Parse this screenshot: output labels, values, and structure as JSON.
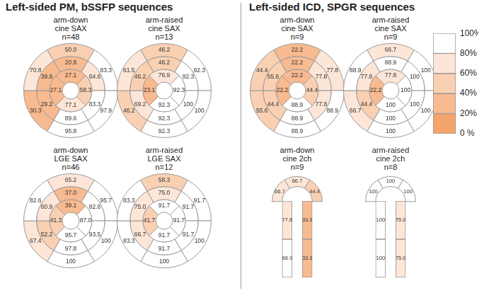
{
  "headings": [
    "Left-sided PM, bSSFP sequences",
    "Left-sided ICD, SPGR sequences"
  ],
  "colorbar": {
    "range": [
      0,
      100
    ],
    "ticks": [
      {
        "value": 0,
        "label": "0 %"
      },
      {
        "value": 20,
        "label": "20%"
      },
      {
        "value": 40,
        "label": "40%"
      },
      {
        "value": 60,
        "label": "60%"
      },
      {
        "value": 80,
        "label": "80%"
      },
      {
        "value": 100,
        "label": "100%"
      }
    ],
    "colors": [
      "#f5a46c",
      "#f8ba90",
      "#fad0b3",
      "#fde6d7",
      "#ffffff"
    ]
  },
  "chart_data": [
    {
      "type": "bullseye",
      "title": [
        "arm-down",
        "cine SAX",
        "n=48"
      ],
      "basal": {
        "values": [
          50.0,
          83.3,
          97.9,
          95.8,
          30.3,
          70.8
        ],
        "value_labels": [
          "50.0",
          "83.3",
          "97.9",
          "95.8",
          "30.3",
          "70.8"
        ]
      },
      "mid": {
        "values": [
          20.8,
          64.6,
          83.3,
          89.6,
          29.2,
          39.6
        ],
        "value_labels": [
          "20.8",
          "64.6",
          "83.3",
          "89.6",
          "29.2",
          "39.6"
        ]
      },
      "apical": {
        "values": [
          27.1,
          58.3,
          77.1,
          27.1
        ],
        "value_labels": [
          "27.1",
          "58.3",
          "77.1",
          "27.1"
        ]
      }
    },
    {
      "type": "bullseye",
      "title": [
        "arm-raised",
        "cine SAX",
        "n=13"
      ],
      "basal": {
        "values": [
          46.2,
          92.3,
          100,
          92.3,
          46.2,
          61.5
        ],
        "value_labels": [
          "46.2",
          "92.3",
          "100",
          "92.3",
          "46.2",
          "61.5"
        ]
      },
      "mid": {
        "values": [
          46.2,
          92.3,
          100,
          92.3,
          69.2,
          46.2
        ],
        "value_labels": [
          "46.2",
          "92.3",
          "100",
          "92.3",
          "69.2",
          "46.2"
        ]
      },
      "apical": {
        "values": [
          76.9,
          92.3,
          92.3,
          23.1
        ],
        "value_labels": [
          "76.9",
          "92.3",
          "92.3",
          "23.1"
        ]
      }
    },
    {
      "type": "bullseye",
      "title": [
        "arm-down",
        "LGE SAX",
        "n=46"
      ],
      "basal": {
        "values": [
          65.2,
          95.7,
          100,
          100,
          67.4,
          82.6
        ],
        "value_labels": [
          "65.2",
          "95.7",
          "100",
          "100",
          "67.4",
          "82.6"
        ]
      },
      "mid": {
        "values": [
          37.0,
          82.6,
          93.5,
          97.8,
          52.2,
          60.9
        ],
        "value_labels": [
          "37.0",
          "82.6",
          "93.5",
          "97.8",
          "52.2",
          "60.9"
        ]
      },
      "apical": {
        "values": [
          39.1,
          87.0,
          95.7,
          41.3
        ],
        "value_labels": [
          "39.1",
          "87.0",
          "95.7",
          "41.3"
        ]
      }
    },
    {
      "type": "bullseye",
      "title": [
        "arm-raised",
        "LGE SAX",
        "n=12"
      ],
      "basal": {
        "values": [
          58.3,
          91.7,
          100,
          100,
          83.3,
          83.3
        ],
        "value_labels": [
          "58.3",
          "91.7",
          "100",
          "100",
          "83.3",
          "83.3"
        ]
      },
      "mid": {
        "values": [
          75.0,
          91.7,
          91.7,
          91.7,
          66.7,
          75.0
        ],
        "value_labels": [
          "75.0",
          "91.7",
          "91.7",
          "91.7",
          "66.7",
          "75.0"
        ]
      },
      "apical": {
        "values": [
          91.7,
          91.7,
          91.7,
          41.7
        ],
        "value_labels": [
          "91.7",
          "91.7",
          "91.7",
          "41.7"
        ]
      }
    },
    {
      "type": "bullseye",
      "title": [
        "arm-down",
        "cine SAX",
        "n=9"
      ],
      "basal": {
        "values": [
          22.2,
          77.8,
          88.9,
          88.9,
          55.6,
          44.4
        ],
        "value_labels": [
          "22.2",
          "77.8",
          "88.9",
          "88.9",
          "55.6",
          "44.4"
        ]
      },
      "mid": {
        "values": [
          22.2,
          77.8,
          77.8,
          88.9,
          44.4,
          55.6
        ],
        "value_labels": [
          "22.2",
          "77.8",
          "77.8",
          "88.9",
          "44.4",
          "55.6"
        ]
      },
      "apical": {
        "values": [
          22.2,
          44.4,
          88.9,
          22.2
        ],
        "value_labels": [
          "22.2",
          "44.4",
          "88.9",
          "22.2"
        ]
      }
    },
    {
      "type": "bullseye",
      "title": [
        "arm-raised",
        "cine SAX",
        "n=9"
      ],
      "basal": {
        "values": [
          66.7,
          100,
          100,
          100,
          66.7,
          88.9
        ],
        "value_labels": [
          "66.7",
          "100",
          "100",
          "100",
          "66.7",
          "88.9"
        ]
      },
      "mid": {
        "values": [
          88.9,
          100,
          100,
          100,
          44.4,
          77.8
        ],
        "value_labels": [
          "88.9",
          "100",
          "100",
          "100",
          "44.4",
          "77.8"
        ]
      },
      "apical": {
        "values": [
          77.8,
          100,
          100,
          22.2
        ],
        "value_labels": [
          "77.8",
          "100",
          "100",
          "22.2"
        ]
      }
    },
    {
      "type": "longaxis",
      "title": [
        "arm-down",
        "cine 2ch",
        "n=9"
      ],
      "apex": {
        "values": [
          66.7
        ],
        "value_labels": [
          "66.7"
        ]
      },
      "apical": {
        "values": [
          66.7,
          44.4
        ],
        "value_labels": [
          "66.7",
          "44.4"
        ]
      },
      "mid": {
        "values": [
          77.8,
          33.3
        ],
        "value_labels": [
          "77.8",
          "33.3"
        ]
      },
      "basal": {
        "values": [
          88.9,
          33.3
        ],
        "value_labels": [
          "88.9",
          "33.3"
        ]
      }
    },
    {
      "type": "longaxis",
      "title": [
        "arm-raised",
        "cine 2ch",
        "n=8"
      ],
      "apex": {
        "values": [
          100
        ],
        "value_labels": [
          "100"
        ]
      },
      "apical": {
        "values": [
          100,
          100
        ],
        "value_labels": [
          "100",
          "100"
        ]
      },
      "mid": {
        "values": [
          100,
          75.0
        ],
        "value_labels": [
          "100",
          "75.0"
        ]
      },
      "basal": {
        "values": [
          100,
          75.0
        ],
        "value_labels": [
          "100",
          "75.0"
        ]
      }
    }
  ]
}
